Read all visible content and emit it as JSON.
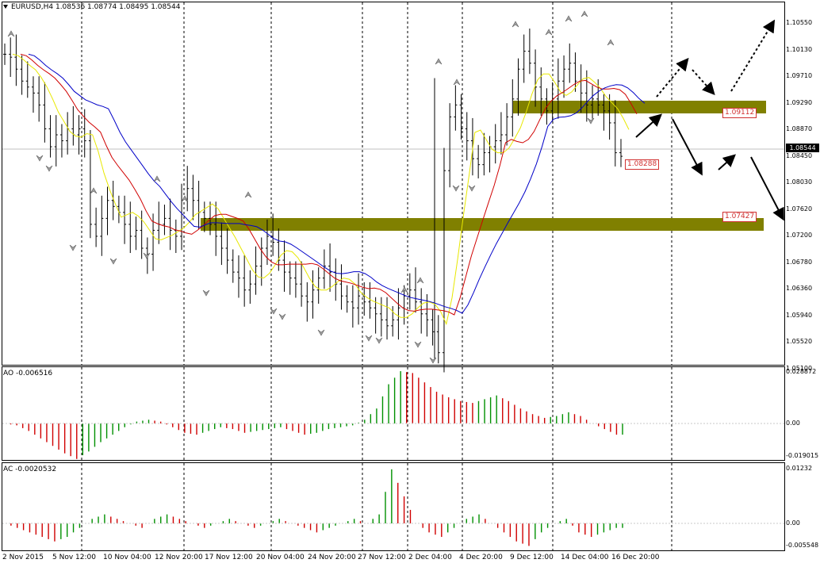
{
  "header": {
    "main": "EURUSD,H4  1.08536 1.08774 1.08495 1.08544",
    "ao": "AO -0.006516",
    "ac": "AC -0.0020532"
  },
  "price_axis": [
    "1.10550",
    "1.10130",
    "1.09710",
    "1.09290",
    "1.08870",
    "1.08450",
    "1.08030",
    "1.07620",
    "1.07200",
    "1.06780",
    "1.06360",
    "1.05940",
    "1.05520",
    "1.05100"
  ],
  "current_price": "1.08544",
  "tags": {
    "level_high": "1.09112",
    "level_low": "1.07427",
    "low_mark": "1.08288"
  },
  "ao_axis": [
    "0.028872",
    "0.00",
    "-0.019015"
  ],
  "ac_axis": [
    "0.01232",
    "0.00",
    "-0.005548"
  ],
  "time_axis": [
    "2 Nov 2015",
    "5 Nov 12:00",
    "10 Nov 04:00",
    "12 Nov 20:00",
    "17 Nov 12:00",
    "20 Nov 04:00",
    "24 Nov 20:00",
    "27 Nov 12:00",
    "2 Dec 04:00",
    "4 Dec 20:00",
    "9 Dec 12:00",
    "14 Dec 04:00",
    "16 Dec 20:00"
  ],
  "colors": {
    "grid_dashed": "#000000",
    "ma_fast": "#e8e800",
    "ma_mid": "#d00000",
    "ma_slow": "#0000c8",
    "zone": "#808000",
    "ao_up": "#009000",
    "ao_down": "#d00000"
  },
  "chart_data": {
    "type": "candlestick",
    "symbol": "EURUSD",
    "timeframe": "H4",
    "ylim": [
      1.051,
      1.1076
    ],
    "zones": [
      {
        "low": 1.0903,
        "high": 1.0921,
        "label": "1.09112"
      },
      {
        "low": 1.0724,
        "high": 1.0742,
        "label": "1.07427"
      }
    ],
    "closes": [
      1.1025,
      1.102,
      1.1,
      1.098,
      1.097,
      1.096,
      1.094,
      1.09,
      1.087,
      1.089,
      1.088,
      1.09,
      1.089,
      1.09,
      1.088,
      1.074,
      1.072,
      1.075,
      1.078,
      1.077,
      1.076,
      1.074,
      1.072,
      1.073,
      1.07,
      1.069,
      1.073,
      1.074,
      1.075,
      1.073,
      1.072,
      1.078,
      1.08,
      1.078,
      1.076,
      1.075,
      1.074,
      1.072,
      1.07,
      1.068,
      1.066,
      1.065,
      1.063,
      1.064,
      1.067,
      1.07,
      1.072,
      1.071,
      1.068,
      1.066,
      1.065,
      1.064,
      1.062,
      1.061,
      1.063,
      1.065,
      1.067,
      1.066,
      1.064,
      1.062,
      1.061,
      1.06,
      1.062,
      1.061,
      1.06,
      1.059,
      1.058,
      1.057,
      1.058,
      1.06,
      1.062,
      1.063,
      1.061,
      1.059,
      1.058,
      1.056,
      1.0525,
      1.083,
      1.092,
      1.094,
      1.09,
      1.088,
      1.085,
      1.084,
      1.086,
      1.087,
      1.088,
      1.089,
      1.092,
      1.095,
      1.1,
      1.103,
      1.101,
      1.097,
      1.095,
      1.093,
      1.095,
      1.098,
      1.1,
      1.101,
      1.098,
      1.096,
      1.094,
      1.095,
      1.094,
      1.093,
      1.091,
      1.086,
      1.0854
    ],
    "ao": [
      0.0,
      -0.001,
      -0.004,
      -0.008,
      -0.012,
      -0.016,
      -0.019,
      -0.015,
      -0.01,
      -0.006,
      -0.002,
      0.001,
      0.002,
      0.001,
      -0.002,
      -0.005,
      -0.006,
      -0.004,
      -0.002,
      -0.003,
      -0.005,
      -0.004,
      -0.003,
      -0.002,
      -0.004,
      -0.006,
      -0.005,
      -0.003,
      -0.002,
      -0.001,
      0.002,
      0.008,
      0.021,
      0.028,
      0.027,
      0.022,
      0.017,
      0.014,
      0.012,
      0.011,
      0.013,
      0.015,
      0.012,
      0.008,
      0.005,
      0.003,
      0.004,
      0.006,
      0.004,
      0.0,
      -0.003,
      -0.006
    ],
    "ac": [
      0.0,
      -0.001,
      -0.002,
      -0.003,
      -0.004,
      -0.003,
      -0.001,
      0.001,
      0.002,
      0.001,
      0.0,
      -0.001,
      0.001,
      0.002,
      0.001,
      0.0,
      -0.001,
      0.0,
      0.001,
      0.0,
      -0.001,
      0.0,
      0.001,
      0.0,
      -0.001,
      -0.002,
      -0.001,
      0.0,
      0.001,
      0.0,
      0.002,
      0.012,
      0.006,
      0.0,
      -0.002,
      -0.003,
      -0.001,
      0.001,
      0.002,
      0.0,
      -0.002,
      -0.004,
      -0.005,
      -0.002,
      0.0,
      0.001,
      -0.002,
      -0.003,
      -0.002,
      -0.001
    ]
  }
}
